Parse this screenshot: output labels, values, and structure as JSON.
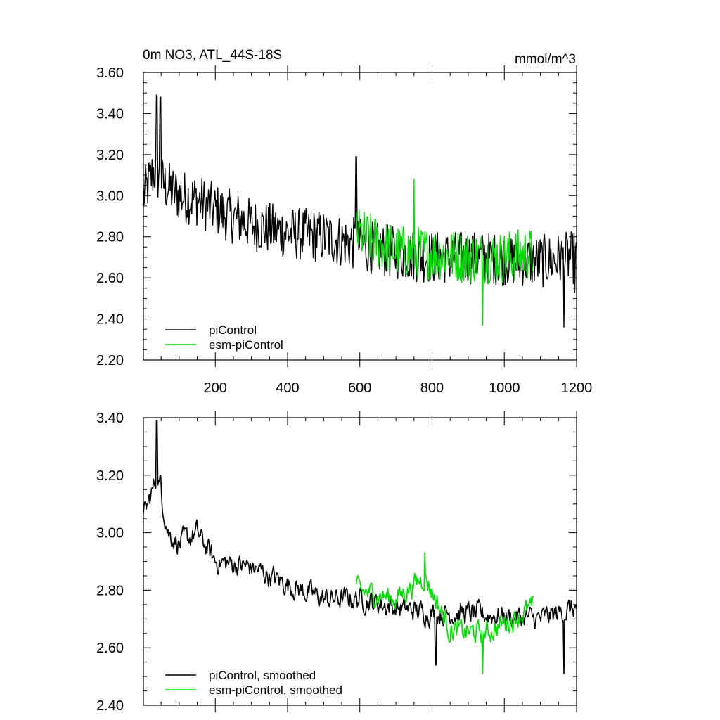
{
  "chart_data": [
    {
      "type": "line",
      "title": "0m NO3, ATL_44S-18S",
      "units": "mmol/m^3",
      "xlim": [
        1,
        1200
      ],
      "ylim": [
        2.2,
        3.6
      ],
      "xticks": [
        200,
        400,
        600,
        800,
        1000,
        1200
      ],
      "xtick_labels": [
        "200",
        "400",
        "600",
        "800",
        "1000",
        "1200"
      ],
      "yticks": [
        2.2,
        2.4,
        2.6,
        2.8,
        3.0,
        3.2,
        3.4,
        3.6
      ],
      "ytick_labels": [
        "2.20",
        "2.40",
        "2.60",
        "2.80",
        "3.00",
        "3.20",
        "3.40",
        "3.60"
      ],
      "legend_position": "bottom-left",
      "series": [
        {
          "name": "piControl",
          "color": "#000000",
          "x_range": [
            1,
            1200
          ],
          "anchors": [
            [
              1,
              3.0
            ],
            [
              30,
              3.12
            ],
            [
              60,
              3.05
            ],
            [
              100,
              3.0
            ],
            [
              150,
              2.98
            ],
            [
              200,
              2.93
            ],
            [
              300,
              2.86
            ],
            [
              400,
              2.82
            ],
            [
              500,
              2.8
            ],
            [
              600,
              2.76
            ],
            [
              700,
              2.72
            ],
            [
              800,
              2.7
            ],
            [
              900,
              2.7
            ],
            [
              1000,
              2.69
            ],
            [
              1100,
              2.68
            ],
            [
              1200,
              2.7
            ]
          ],
          "min": 2.36,
          "max": 3.49,
          "spikes": [
            [
              38,
              3.49
            ],
            [
              48,
              3.48
            ],
            [
              590,
              3.19
            ],
            [
              1165,
              2.36
            ],
            [
              1195,
              2.53
            ]
          ]
        },
        {
          "name": "esm-piControl",
          "color": "#00e000",
          "x_range": [
            590,
            1080
          ],
          "anchors": [
            [
              590,
              2.82
            ],
            [
              700,
              2.73
            ],
            [
              800,
              2.72
            ],
            [
              900,
              2.7
            ],
            [
              1000,
              2.7
            ],
            [
              1080,
              2.72
            ]
          ],
          "min": 2.37,
          "max": 3.08,
          "spikes": [
            [
              750,
              3.08
            ],
            [
              940,
              2.37
            ]
          ]
        }
      ]
    },
    {
      "type": "line",
      "xlim": [
        1,
        1200
      ],
      "ylim": [
        2.4,
        3.4
      ],
      "xticks": [
        200,
        400,
        600,
        800,
        1000,
        1200
      ],
      "yticks": [
        2.4,
        2.6,
        2.8,
        3.0,
        3.2,
        3.4
      ],
      "ytick_labels": [
        "2.40",
        "2.60",
        "2.80",
        "3.00",
        "3.20",
        "3.40"
      ],
      "legend_position": "bottom-left",
      "series": [
        {
          "name": "piControl, smoothed",
          "color": "#000000",
          "x_range": [
            1,
            1200
          ],
          "anchors": [
            [
              1,
              3.05
            ],
            [
              40,
              3.2
            ],
            [
              70,
              3.0
            ],
            [
              100,
              2.96
            ],
            [
              150,
              3.0
            ],
            [
              200,
              2.9
            ],
            [
              300,
              2.88
            ],
            [
              400,
              2.82
            ],
            [
              500,
              2.77
            ],
            [
              600,
              2.77
            ],
            [
              700,
              2.74
            ],
            [
              800,
              2.72
            ],
            [
              900,
              2.72
            ],
            [
              1000,
              2.71
            ],
            [
              1100,
              2.7
            ],
            [
              1200,
              2.74
            ]
          ],
          "min": 2.51,
          "max": 3.39,
          "spikes": [
            [
              38,
              3.39
            ],
            [
              48,
              3.2
            ],
            [
              810,
              2.54
            ],
            [
              1165,
              2.51
            ]
          ]
        },
        {
          "name": "esm-piControl, smoothed",
          "color": "#00e000",
          "x_range": [
            590,
            1080
          ],
          "anchors": [
            [
              590,
              2.8
            ],
            [
              700,
              2.77
            ],
            [
              780,
              2.85
            ],
            [
              850,
              2.66
            ],
            [
              950,
              2.65
            ],
            [
              1080,
              2.74
            ]
          ],
          "min": 2.51,
          "max": 2.93,
          "spikes": [
            [
              780,
              2.93
            ],
            [
              940,
              2.51
            ]
          ]
        }
      ]
    }
  ]
}
